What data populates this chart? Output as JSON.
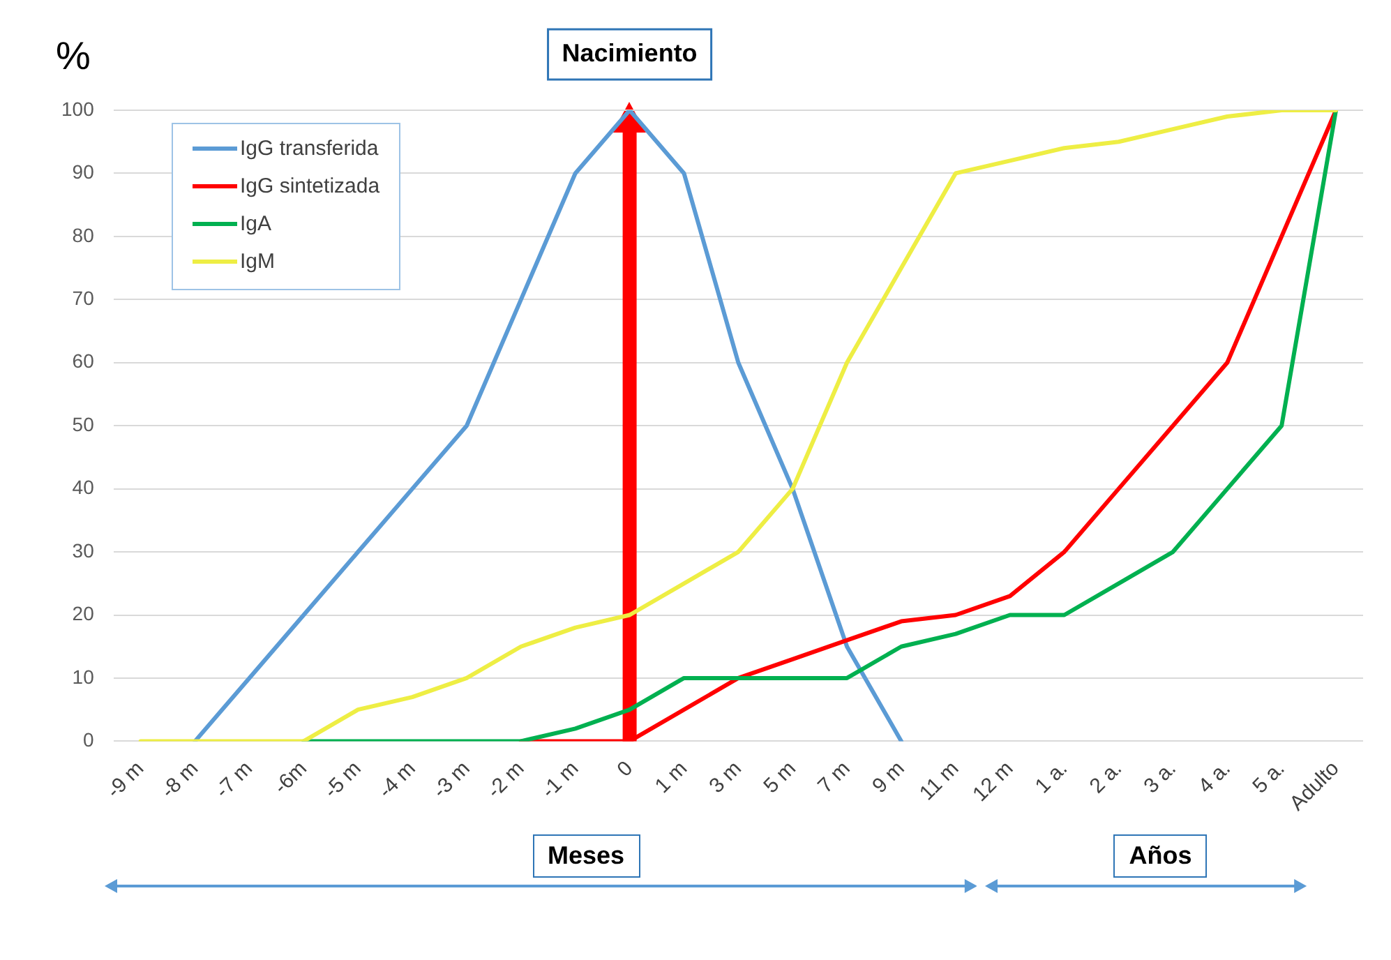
{
  "chart_data": {
    "type": "line",
    "ylabel": "%",
    "categories": [
      "-9 m",
      "-8 m",
      "-7 m",
      "-6m",
      "-5 m",
      "-4 m",
      "-3 m",
      "-2 m",
      "-1 m",
      "0",
      "1 m",
      "3 m",
      "5 m",
      "7 m",
      "9 m",
      "11 m",
      "12 m",
      "1 a.",
      "2 a.",
      "3 a.",
      "4 a.",
      "5 a.",
      "Adulto"
    ],
    "series": [
      {
        "name": "IgG transferida",
        "color": "#5b9bd5",
        "values": [
          null,
          0,
          10,
          20,
          30,
          40,
          50,
          70,
          90,
          100,
          90,
          60,
          40,
          15,
          0,
          null,
          null,
          null,
          null,
          null,
          null,
          null,
          null
        ]
      },
      {
        "name": "IgG sintetizada",
        "color": "#ff0000",
        "values": [
          null,
          null,
          null,
          null,
          null,
          null,
          null,
          0,
          0,
          0,
          5,
          10,
          13,
          16,
          19,
          20,
          23,
          30,
          40,
          50,
          60,
          80,
          100
        ]
      },
      {
        "name": "IgA",
        "color": "#00b050",
        "values": [
          null,
          null,
          null,
          0,
          0,
          0,
          0,
          0,
          2,
          5,
          10,
          10,
          10,
          10,
          15,
          17,
          20,
          20,
          25,
          30,
          40,
          50,
          100
        ]
      },
      {
        "name": "IgM",
        "color": "#eeee44",
        "values": [
          0,
          0,
          0,
          0,
          5,
          7,
          10,
          15,
          18,
          20,
          25,
          30,
          40,
          60,
          75,
          90,
          92,
          94,
          95,
          97,
          99,
          100,
          100
        ]
      }
    ],
    "ylim": [
      0,
      100
    ],
    "yticks": [
      0,
      10,
      20,
      30,
      40,
      50,
      60,
      70,
      80,
      90,
      100
    ],
    "grid": "y",
    "legend": "top left",
    "marker": "none",
    "line_style": "solid",
    "ref_lines": [
      {
        "axis": "x",
        "value": "0",
        "label": "Nacimiento",
        "color": "#ff0000"
      }
    ],
    "annotations": [
      "Meses",
      "Años"
    ]
  }
}
